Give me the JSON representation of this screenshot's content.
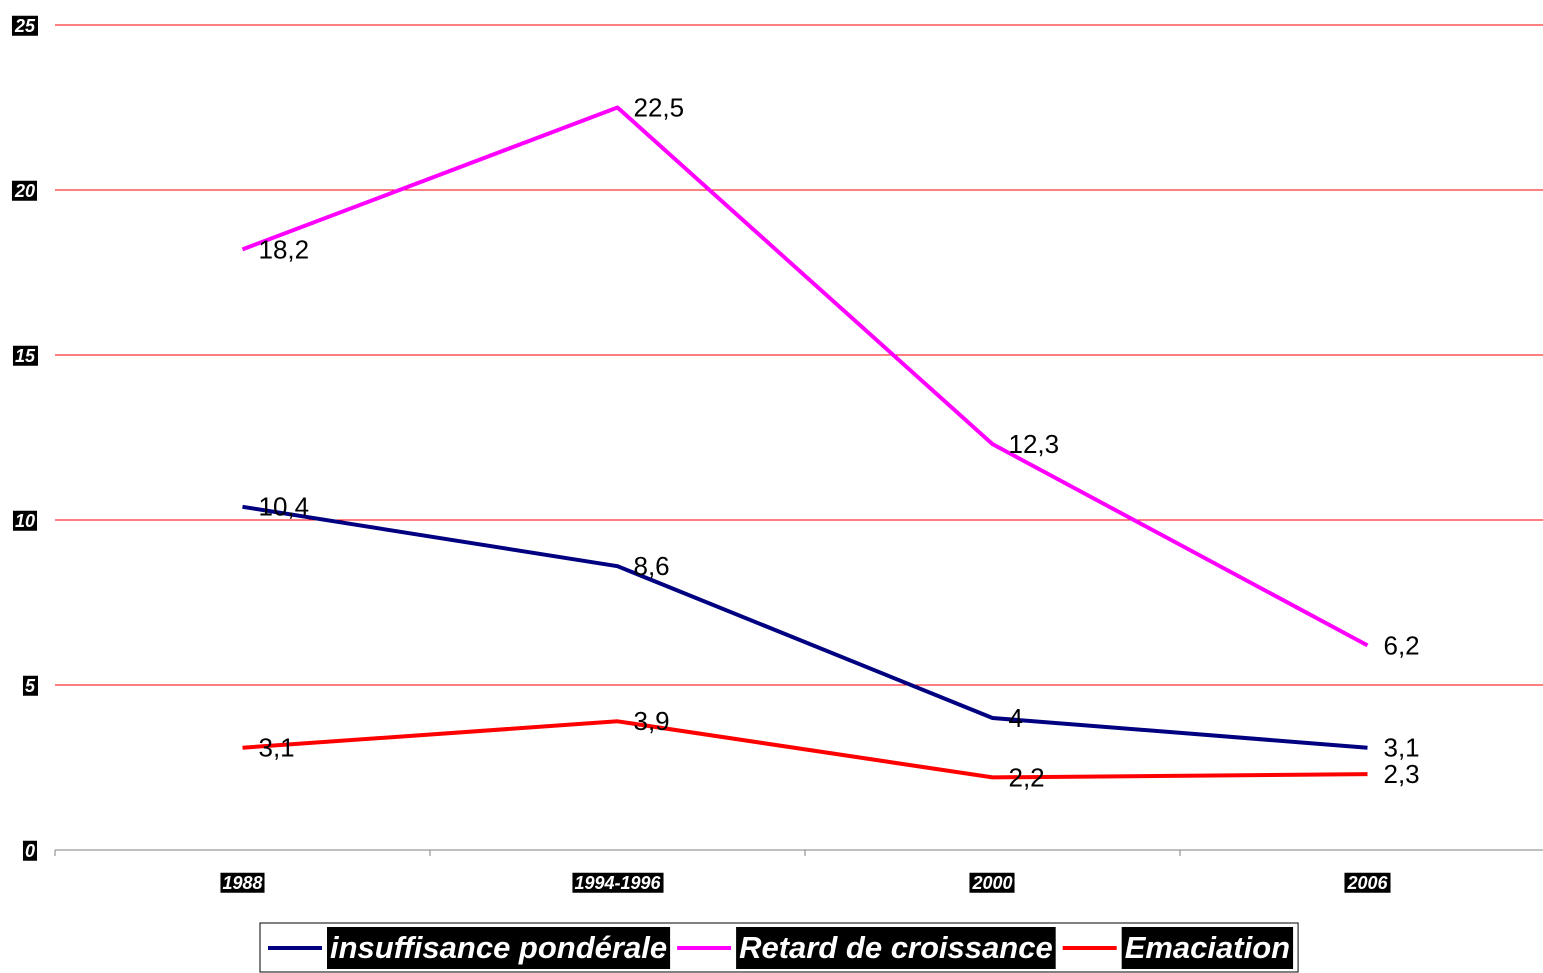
{
  "chart_data": {
    "type": "line",
    "categories": [
      "1988",
      "1994-1996",
      "2000",
      "2006"
    ],
    "series": [
      {
        "name": "insuffisance pondérale",
        "color": "#000080",
        "values": [
          10.4,
          8.6,
          4,
          3.1
        ],
        "value_labels": [
          "10,4",
          "8,6",
          "4",
          "3,1"
        ]
      },
      {
        "name": "Retard de croissance",
        "color": "#ff00ff",
        "values": [
          18.2,
          22.5,
          12.3,
          6.2
        ],
        "value_labels": [
          "18,2",
          "22,5",
          "12,3",
          "6,2"
        ]
      },
      {
        "name": "Emaciation",
        "color": "#ff0000",
        "values": [
          3.1,
          3.9,
          2.2,
          2.3
        ],
        "value_labels": [
          "3,1",
          "3,9",
          "2,2",
          "2,3"
        ]
      }
    ],
    "ylim": [
      0,
      25
    ],
    "yticks": [
      0,
      5,
      10,
      15,
      20,
      25
    ],
    "grid": true,
    "grid_color": "#ff0000",
    "legend": "bottom"
  }
}
